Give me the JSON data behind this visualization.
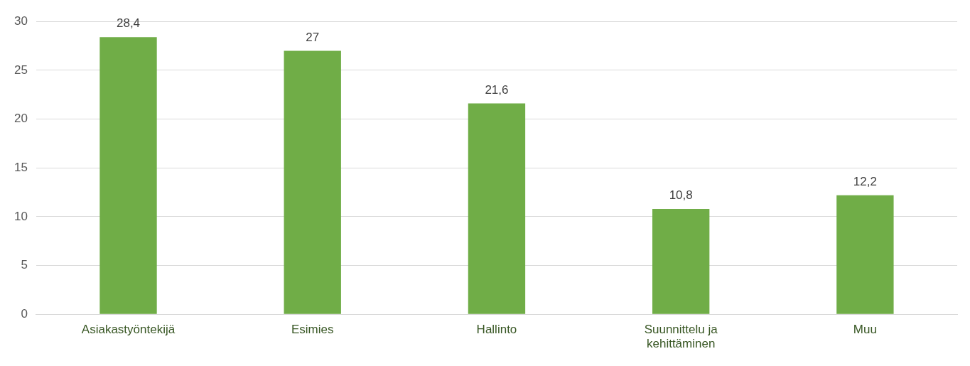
{
  "chart_data": {
    "type": "bar",
    "categories": [
      "Asiakastyöntekijä",
      "Esimies",
      "Hallinto",
      "Suunnittelu ja kehittäminen",
      "Muu"
    ],
    "values": [
      28.4,
      27,
      21.6,
      10.8,
      12.2
    ],
    "value_labels": [
      "28,4",
      "27",
      "21,6",
      "10,8",
      "12,2"
    ],
    "color": "#70ad47",
    "ylim": [
      0,
      30
    ],
    "yticks": [
      0,
      5,
      10,
      15,
      20,
      25,
      30
    ],
    "grid": "y",
    "legend": false
  }
}
